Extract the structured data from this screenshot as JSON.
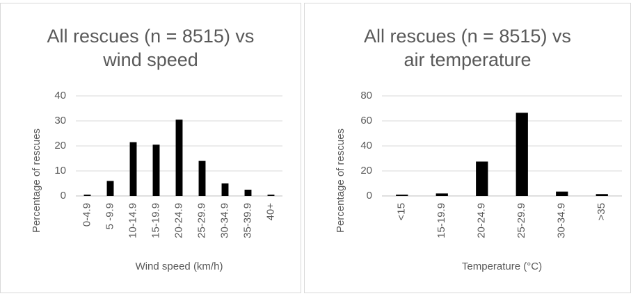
{
  "chart_data": [
    {
      "type": "bar",
      "title": "All rescues (n = 8515) vs wind speed",
      "y_label": "Percentage of rescues",
      "x_label": "Wind speed (km/h)",
      "categories": [
        "0-4.9",
        "5 -9.9",
        "10-14.9",
        "15-19.9",
        "20-24.9",
        "25-29.9",
        "30-34.9",
        "35-39.9",
        "40+"
      ],
      "values": [
        0.5,
        6,
        21.5,
        20.5,
        30.5,
        14,
        5,
        2.5,
        0.5
      ],
      "color": "#000000",
      "ylim": [
        0,
        40
      ],
      "yticks": [
        0,
        10,
        20,
        30,
        40
      ],
      "grid": true
    },
    {
      "type": "bar",
      "title": "All rescues (n = 8515) vs air temperature",
      "y_label": "Percentage of rescues",
      "x_label": "Temperature (°C)",
      "categories": [
        "<15",
        "15-19.9",
        "20-24.9",
        "25-29.9",
        "30-34.9",
        ">35"
      ],
      "values": [
        1,
        2,
        27.5,
        66.5,
        3.5,
        1.5
      ],
      "color": "#000000",
      "ylim": [
        0,
        80
      ],
      "yticks": [
        0,
        20,
        40,
        60,
        80
      ],
      "grid": true
    }
  ]
}
